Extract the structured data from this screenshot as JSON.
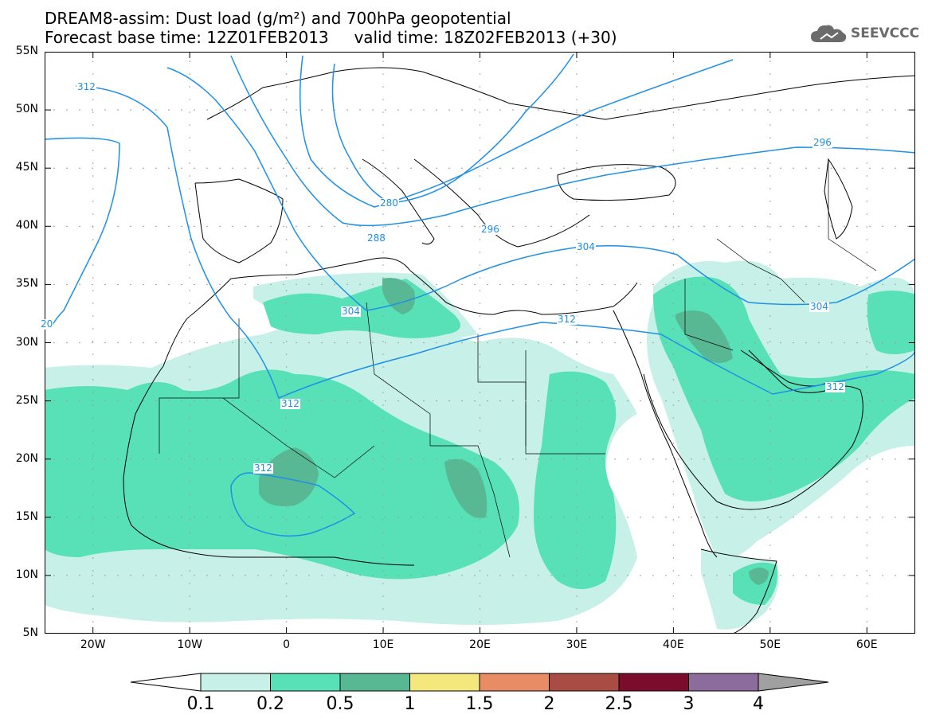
{
  "title": {
    "line1": "DREAM8-assim: Dust load (g/m²) and 700hPa geopotential",
    "line2": "Forecast base time: 12Z01FEB2013     valid time: 18Z02FEB2013 (+30)"
  },
  "logo": {
    "text": "SEEVCCC",
    "icon": "cloud-icon"
  },
  "axes": {
    "lat_labels": [
      "55N",
      "50N",
      "45N",
      "40N",
      "35N",
      "30N",
      "25N",
      "20N",
      "15N",
      "10N",
      "5N"
    ],
    "lon_labels": [
      "20W",
      "10W",
      "0",
      "10E",
      "20E",
      "30E",
      "40E",
      "50E",
      "60E"
    ]
  },
  "contour_labels": [
    "312",
    "296",
    "280",
    "288",
    "296",
    "304",
    "304",
    "304",
    "312",
    "312",
    "312",
    "20",
    "312"
  ],
  "colorbar": {
    "labels": [
      "0.1",
      "0.2",
      "0.5",
      "1",
      "1.5",
      "2",
      "2.5",
      "3",
      "4"
    ],
    "colors": [
      "#c7f0e8",
      "#58e0b6",
      "#58b894",
      "#f4e87c",
      "#e88c66",
      "#a84c44",
      "#7c0c2c",
      "#8c6c9c"
    ],
    "under_color": "#ffffff",
    "over_color": "#a0a0a0"
  },
  "colors": {
    "contour": "#1e90e6",
    "coast": "#000000",
    "level1": "#c7f0e8",
    "level2": "#58e0b6",
    "level3": "#58b894"
  }
}
